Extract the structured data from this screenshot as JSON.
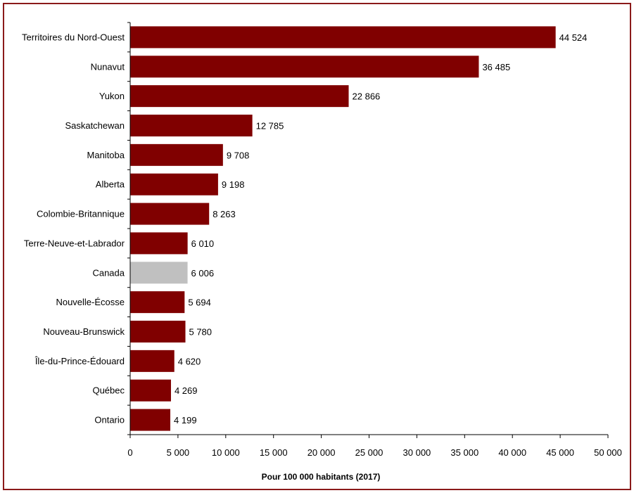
{
  "chart_data": {
    "type": "bar",
    "orientation": "horizontal",
    "categories": [
      "Territoires du Nord-Ouest",
      "Nunavut",
      "Yukon",
      "Saskatchewan",
      "Manitoba",
      "Alberta",
      "Colombie-Britannique",
      "Terre-Neuve-et-Labrador",
      "Canada",
      "Nouvelle-Écosse",
      "Nouveau-Brunswick",
      "Île-du-Prince-Édouard",
      "Québec",
      "Ontario"
    ],
    "values": [
      44524,
      36485,
      22866,
      12785,
      9708,
      9198,
      8263,
      6010,
      6006,
      5694,
      5780,
      4620,
      4269,
      4199
    ],
    "value_labels": [
      "44 524",
      "36 485",
      "22 866",
      "12 785",
      "9 708",
      "9 198",
      "8 263",
      "6 010",
      "6 006",
      "5 694",
      "5 780",
      "4 620",
      "4 269",
      "4 199"
    ],
    "highlight_category": "Canada",
    "colors": {
      "bar": "#800000",
      "highlight": "#c0c0c0",
      "frame": "#8b1a1a"
    },
    "xlabel": "Pour 100 000 habitants (2017)",
    "ylabel": "",
    "xlim": [
      0,
      50000
    ],
    "xticks": [
      0,
      5000,
      10000,
      15000,
      20000,
      25000,
      30000,
      35000,
      40000,
      45000,
      50000
    ],
    "xtick_labels": [
      "0",
      "5 000",
      "10 000",
      "15 000",
      "20 000",
      "25 000",
      "30 000",
      "35 000",
      "40 000",
      "45 000",
      "50 000"
    ],
    "grid": false,
    "legend": "none"
  }
}
